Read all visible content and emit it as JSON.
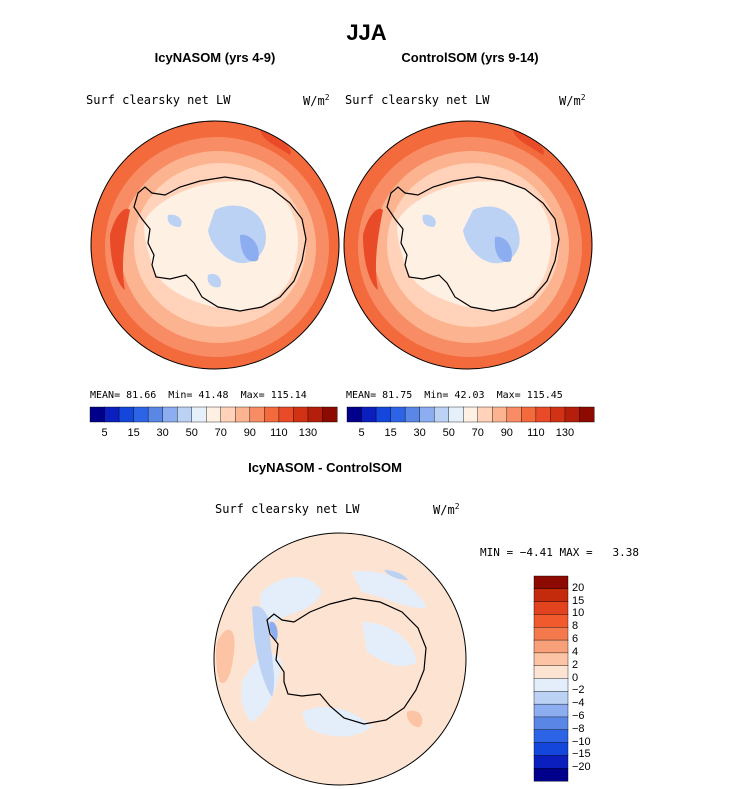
{
  "figure": {
    "title": "JJA"
  },
  "panels": [
    {
      "title": "IcyNASOM (yrs 4-9)",
      "field_label": "Surf clearsky net LW",
      "units": "W/m",
      "units_sup": "2",
      "stats": {
        "mean_label": "MEAN=",
        "mean": "81.66",
        "min_label": "Min=",
        "min": "41.48",
        "max_label": "Max=",
        "max": "115.14"
      }
    },
    {
      "title": "ControlSOM (yrs 9-14)",
      "field_label": "Surf clearsky net LW",
      "units": "W/m",
      "units_sup": "2",
      "stats": {
        "mean_label": "MEAN=",
        "mean": "81.75",
        "min_label": "Min=",
        "min": "42.03",
        "max_label": "Max=",
        "max": "115.45"
      }
    }
  ],
  "colorbar_top": {
    "colors": [
      "#00008b",
      "#0a1fbe",
      "#1446dc",
      "#2d64e6",
      "#5a87e6",
      "#8cadf0",
      "#bcd2f5",
      "#e6f0fa",
      "#fff0e4",
      "#ffd2b9",
      "#fcb490",
      "#f88c64",
      "#f36a3c",
      "#e94a28",
      "#d23214",
      "#b41e0a",
      "#8c0a00"
    ],
    "ticks": [
      "5",
      "15",
      "30",
      "50",
      "70",
      "90",
      "110",
      "130"
    ]
  },
  "diff_panel": {
    "title": "IcyNASOM - ControlSOM",
    "field_label": "Surf clearsky net LW",
    "units": "W/m",
    "units_sup": "2",
    "min_label": "MIN =",
    "min": "−4.41",
    "max_label": "MAX =",
    "max": "3.38"
  },
  "colorbar_diff": {
    "colors_top_to_bottom": [
      "#8c0a00",
      "#c42a0c",
      "#e1431f",
      "#f05a2d",
      "#f47a4e",
      "#f8a07a",
      "#fcc4a4",
      "#fde4d2",
      "#e4eefa",
      "#bcd2f5",
      "#8cadf0",
      "#5a87e6",
      "#2d64e6",
      "#1446dc",
      "#0a1fbe",
      "#00008b"
    ],
    "ticks_top_to_bottom": [
      "20",
      "15",
      "10",
      "8",
      "6",
      "4",
      "2",
      "0",
      "−2",
      "−4",
      "−6",
      "−8",
      "−10",
      "−15",
      "−20"
    ]
  }
}
